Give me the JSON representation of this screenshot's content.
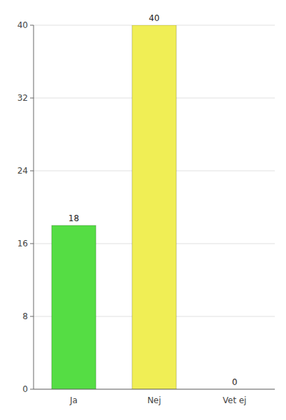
{
  "chart_data": {
    "type": "bar",
    "categories": [
      "Ja",
      "Nej",
      "Vet ej"
    ],
    "values": [
      18,
      40,
      0
    ],
    "colors": [
      "#55dd44",
      "#f0ee55",
      "#f0ee55"
    ],
    "ylim": [
      0,
      40
    ],
    "yticks": [
      0,
      8,
      16,
      24,
      32,
      40
    ],
    "grid": true,
    "data_labels": true
  }
}
